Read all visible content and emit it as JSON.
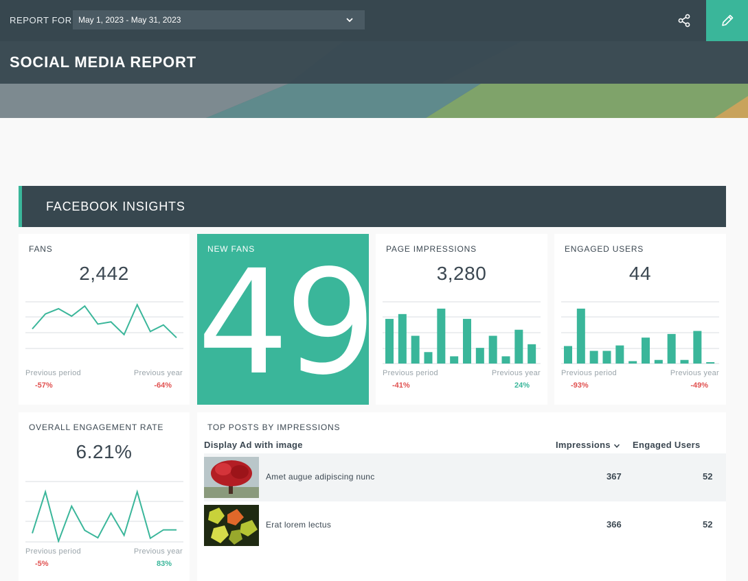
{
  "header": {
    "report_for_label": "REPORT FOR",
    "date_range": "May 1, 2023 - May 31, 2023",
    "share_icon": "share-icon",
    "edit_icon": "pencil-icon"
  },
  "banner": {
    "title": "SOCIAL MEDIA REPORT"
  },
  "section": {
    "title": "FACEBOOK INSIGHTS"
  },
  "colors": {
    "accent": "#3ab69a",
    "dark": "#37474f",
    "negative": "#e0504f"
  },
  "cards": {
    "fans": {
      "title": "FANS",
      "value": "2,442",
      "prev_period_label": "Previous period",
      "prev_year_label": "Previous year",
      "prev_period": "-57%",
      "prev_year": "-64%",
      "spark_values": [
        0.43,
        0.77,
        0.89,
        0.72,
        0.95,
        0.54,
        0.59,
        0.3,
        0.98,
        0.37,
        0.52,
        0.23
      ]
    },
    "new_fans": {
      "title": "NEW FANS",
      "value": "49"
    },
    "page_impressions": {
      "title": "PAGE IMPRESSIONS",
      "value": "3,280",
      "prev_period_label": "Previous period",
      "prev_year_label": "Previous year",
      "prev_period": "-41%",
      "prev_year": "24%",
      "bar_values": [
        0.74,
        0.82,
        0.46,
        0.19,
        0.91,
        0.12,
        0.74,
        0.26,
        0.46,
        0.12,
        0.56,
        0.32
      ]
    },
    "engaged_users": {
      "title": "ENGAGED USERS",
      "value": "44",
      "prev_period_label": "Previous period",
      "prev_year_label": "Previous year",
      "prev_period": "-93%",
      "prev_year": "-49%",
      "bar_values": [
        0.29,
        0.91,
        0.21,
        0.21,
        0.3,
        0.04,
        0.43,
        0.06,
        0.49,
        0.06,
        0.54,
        0.02
      ]
    },
    "engagement_rate": {
      "title": "OVERALL ENGAGEMENT RATE",
      "value": "6.21%",
      "prev_period_label": "Previous period",
      "prev_year_label": "Previous year",
      "prev_period": "-5%",
      "prev_year": "83%",
      "spark_values": [
        0.16,
        1.0,
        0.0,
        0.71,
        0.22,
        0.07,
        0.57,
        0.12,
        1.0,
        0.06,
        0.23,
        0.23
      ]
    }
  },
  "top_posts": {
    "title": "TOP POSTS BY IMPRESSIONS",
    "col_post": "Display Ad with image",
    "col_impressions": "Impressions",
    "col_engaged": "Engaged Users",
    "rows": [
      {
        "text": "Amet augue adipiscing nunc",
        "impressions": "367",
        "engaged": "52",
        "image": "red-tree-photo"
      },
      {
        "text": "Erat lorem lectus",
        "impressions": "366",
        "engaged": "52",
        "image": "leaves-photo"
      }
    ]
  }
}
